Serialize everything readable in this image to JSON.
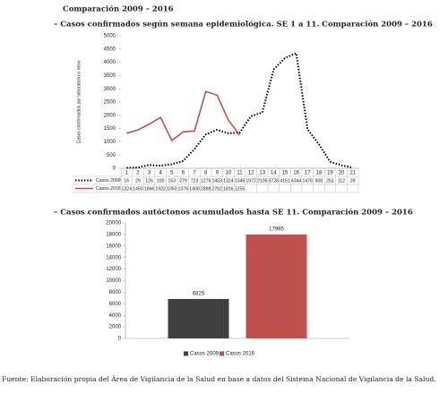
{
  "heading": "Comparación 2009 – 2016",
  "footer": "Fuente: Elaboración propia del Área de Vigilancia de la Salud en base a datos del Sistema Nacional de Vigilancia de la Salud.",
  "chart_data": [
    {
      "type": "line",
      "title": "– Casos confirmados según semana epidemiológica. SE 1 a 11. Comparación 2009 – 2016",
      "y_label": "Casos confirmados por laboratorio o nexo",
      "categories": [
        1,
        2,
        3,
        4,
        5,
        6,
        7,
        8,
        9,
        10,
        11,
        12,
        13,
        14,
        15,
        16,
        17,
        18,
        19,
        20,
        21
      ],
      "series": [
        {
          "name": "Casos 2009",
          "color": "#000000",
          "style": "dotted",
          "values": [
            16,
            29,
            126,
            100,
            153,
            279,
            723,
            1276,
            1453,
            1324,
            1346,
            1972,
            2105,
            3726,
            4161,
            4344,
            1476,
            908,
            251,
            112,
            29
          ]
        },
        {
          "name": "Casos 2016",
          "color": "#c0504d",
          "style": "solid",
          "values": [
            1324,
            1450,
            1666,
            1922,
            1050,
            1376,
            1408,
            2898,
            2762,
            1816,
            1255,
            null,
            null,
            null,
            null,
            null,
            null,
            null,
            null,
            null,
            null
          ]
        }
      ],
      "ylim": [
        0,
        5000
      ],
      "yticks": [
        0,
        500,
        1000,
        1500,
        2000,
        2500,
        3000,
        3500,
        4000,
        4500,
        5000
      ],
      "data_table": true
    },
    {
      "type": "bar",
      "title": "– Casos confirmados autóctonos acumulados hasta SE 11. Comparación 2009 – 2016",
      "series": [
        {
          "name": "Casos 2009",
          "color": "#404040",
          "values": [
            6825
          ]
        },
        {
          "name": "Casos 2016",
          "color": "#c0504d",
          "values": [
            17985
          ]
        }
      ],
      "ylim": [
        0,
        20000
      ],
      "yticks": [
        0,
        2000,
        4000,
        6000,
        8000,
        10000,
        12000,
        14000,
        16000,
        18000,
        20000
      ],
      "legend": "bottom"
    }
  ]
}
